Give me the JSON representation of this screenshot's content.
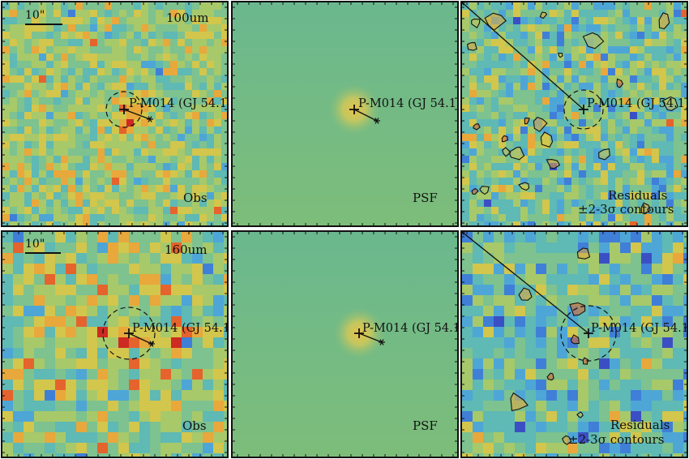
{
  "figure": {
    "rows": [
      {
        "band_label": "100um",
        "scale_label": "10\"",
        "source_label": "P-M014 (GJ 54.1)",
        "panels": [
          {
            "kind": "observed",
            "label": "Obs"
          },
          {
            "kind": "psf",
            "label": "PSF"
          },
          {
            "kind": "residual",
            "label": "Residuals",
            "sublabel": "±2-3σ contours"
          }
        ]
      },
      {
        "band_label": "160um",
        "scale_label": "10\"",
        "source_label": "P-M014 (GJ 54.1)",
        "panels": [
          {
            "kind": "observed",
            "label": "Obs"
          },
          {
            "kind": "psf",
            "label": "PSF"
          },
          {
            "kind": "residual",
            "label": "Residuals",
            "sublabel": "±2-3σ contours"
          }
        ]
      }
    ],
    "colors": {
      "background_green": "#6fb58b",
      "psf_top": "#6bb88e",
      "psf_bottom": "#7dbd7a",
      "peak": "#e8c34a"
    }
  }
}
